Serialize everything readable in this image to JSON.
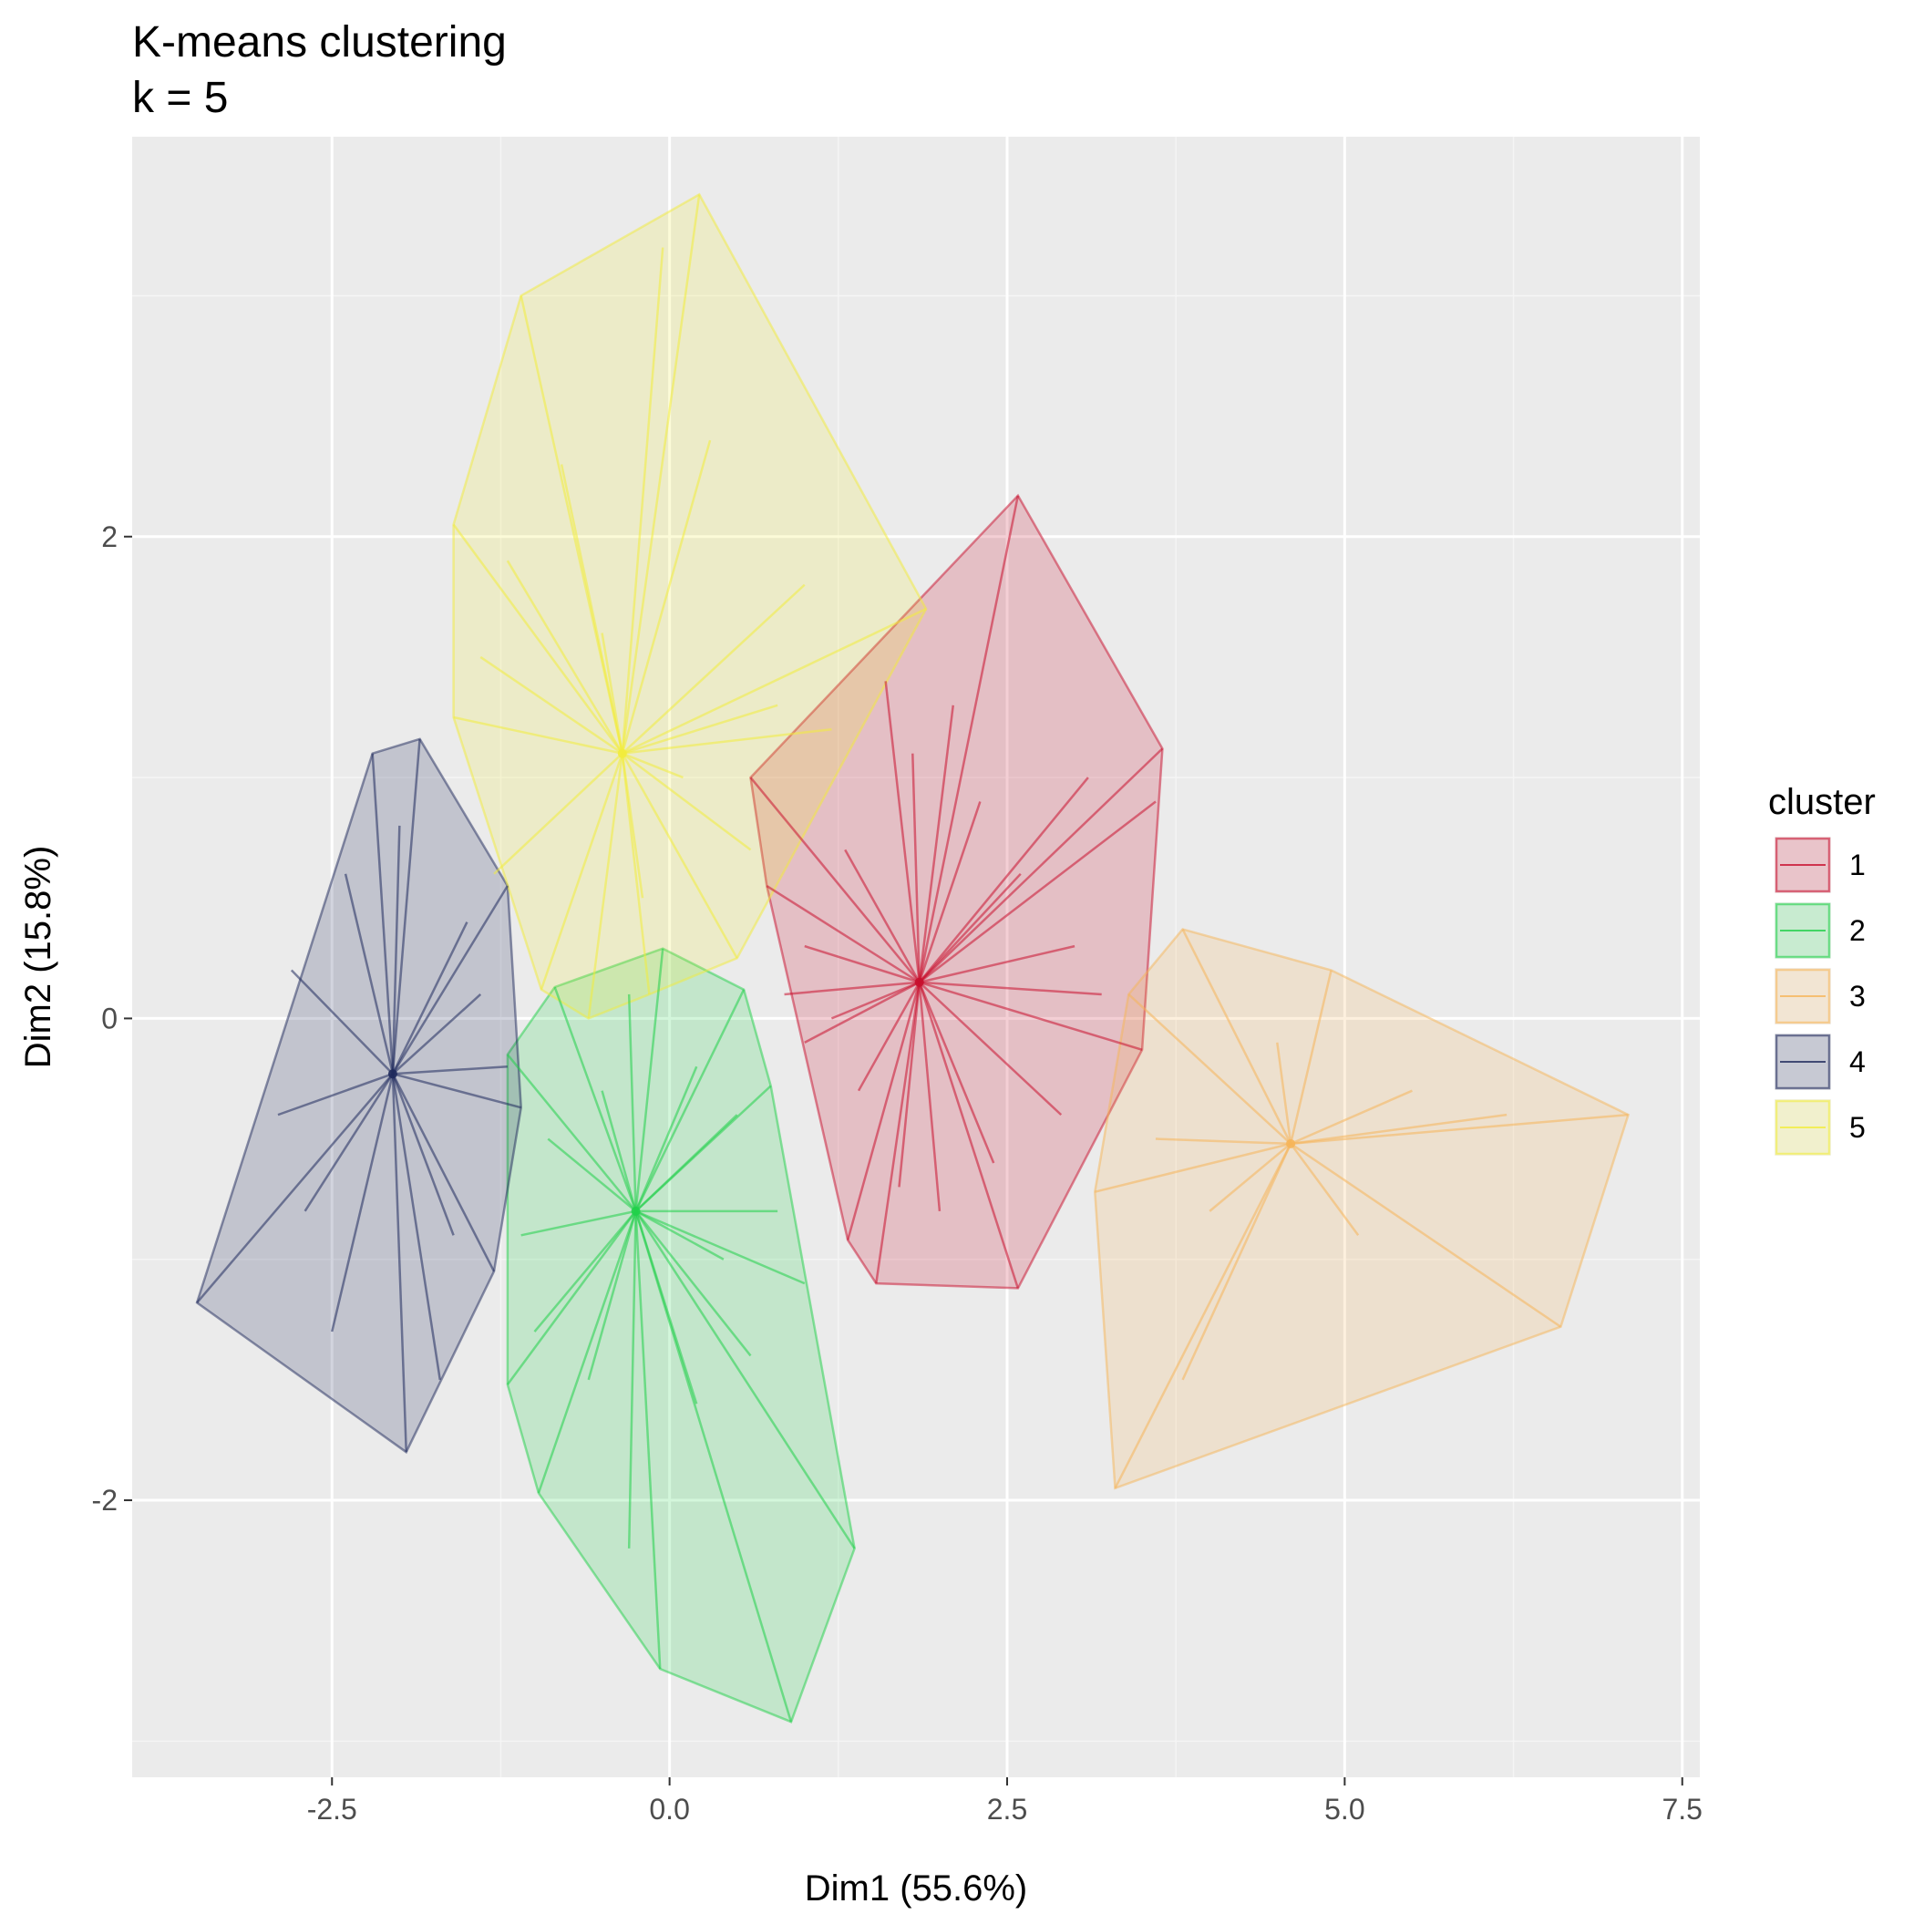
{
  "chart_data": {
    "type": "scatter",
    "title": "K-means clustering",
    "subtitle": "k = 5",
    "xlabel": "Dim1 (55.6%)",
    "ylabel": "Dim2 (15.8%)",
    "xlim": [
      -3.98,
      7.63
    ],
    "ylim": [
      -3.15,
      3.66
    ],
    "x_ticks": [
      -2.5,
      0.0,
      2.5,
      5.0,
      7.5
    ],
    "x_tick_labels": [
      "-2.5",
      "0.0",
      "2.5",
      "5.0",
      "7.5"
    ],
    "y_ticks": [
      -2,
      0,
      2
    ],
    "y_tick_labels": [
      "-2",
      "0",
      "2"
    ],
    "grid": true,
    "legend_title": "cluster",
    "legend_position": "right",
    "series": [
      {
        "name": "1",
        "color": "#C8102E",
        "center": [
          1.85,
          0.15
        ],
        "hull": [
          [
            0.6,
            1.0
          ],
          [
            2.58,
            2.17
          ],
          [
            3.65,
            1.12
          ],
          [
            3.5,
            -0.13
          ],
          [
            2.58,
            -1.12
          ],
          [
            1.53,
            -1.1
          ],
          [
            1.32,
            -0.92
          ],
          [
            0.72,
            0.55
          ]
        ],
        "points": [
          [
            0.6,
            1.0
          ],
          [
            2.58,
            2.17
          ],
          [
            3.65,
            1.12
          ],
          [
            3.5,
            -0.13
          ],
          [
            2.58,
            -1.12
          ],
          [
            1.53,
            -1.1
          ],
          [
            1.32,
            -0.92
          ],
          [
            0.72,
            0.55
          ],
          [
            1.6,
            1.4
          ],
          [
            2.1,
            1.3
          ],
          [
            3.1,
            1.0
          ],
          [
            3.6,
            0.9
          ],
          [
            3.0,
            0.3
          ],
          [
            3.2,
            0.1
          ],
          [
            2.9,
            -0.4
          ],
          [
            2.4,
            -0.6
          ],
          [
            2.0,
            -0.8
          ],
          [
            1.7,
            -0.7
          ],
          [
            1.4,
            -0.3
          ],
          [
            1.0,
            -0.1
          ],
          [
            1.0,
            0.3
          ],
          [
            1.3,
            0.7
          ],
          [
            2.3,
            0.9
          ],
          [
            2.6,
            0.6
          ],
          [
            1.8,
            1.1
          ],
          [
            0.85,
            0.1
          ],
          [
            1.2,
            0.0
          ]
        ]
      },
      {
        "name": "2",
        "color": "#21D04A",
        "center": [
          -0.25,
          -0.8
        ],
        "hull": [
          [
            -0.85,
            0.13
          ],
          [
            -0.05,
            0.29
          ],
          [
            0.55,
            0.12
          ],
          [
            0.75,
            -0.28
          ],
          [
            1.37,
            -2.2
          ],
          [
            0.9,
            -2.92
          ],
          [
            -0.07,
            -2.7
          ],
          [
            -0.97,
            -1.97
          ],
          [
            -1.2,
            -1.52
          ],
          [
            -1.2,
            -0.15
          ]
        ],
        "points": [
          [
            -0.85,
            0.13
          ],
          [
            -0.05,
            0.29
          ],
          [
            0.55,
            0.12
          ],
          [
            0.75,
            -0.28
          ],
          [
            1.37,
            -2.2
          ],
          [
            0.9,
            -2.92
          ],
          [
            -0.07,
            -2.7
          ],
          [
            -0.97,
            -1.97
          ],
          [
            -1.2,
            -1.52
          ],
          [
            -1.2,
            -0.15
          ],
          [
            -0.3,
            0.1
          ],
          [
            0.2,
            -0.2
          ],
          [
            0.5,
            -0.4
          ],
          [
            1.0,
            -1.1
          ],
          [
            0.8,
            -0.8
          ],
          [
            -0.9,
            -0.5
          ],
          [
            -1.1,
            -0.9
          ],
          [
            -1.0,
            -1.3
          ],
          [
            -0.3,
            -2.2
          ],
          [
            0.2,
            -1.6
          ],
          [
            0.6,
            -1.4
          ],
          [
            -0.6,
            -1.5
          ],
          [
            -0.5,
            -0.3
          ],
          [
            0.4,
            -1.0
          ]
        ]
      },
      {
        "name": "3",
        "color": "#F6B55A",
        "center": [
          4.6,
          -0.52
        ],
        "hull": [
          [
            3.8,
            0.37
          ],
          [
            4.9,
            0.2
          ],
          [
            7.1,
            -0.4
          ],
          [
            6.6,
            -1.28
          ],
          [
            3.3,
            -1.95
          ],
          [
            3.15,
            -0.72
          ],
          [
            3.4,
            0.1
          ]
        ],
        "points": [
          [
            3.8,
            0.37
          ],
          [
            4.9,
            0.2
          ],
          [
            7.1,
            -0.4
          ],
          [
            6.6,
            -1.28
          ],
          [
            3.3,
            -1.95
          ],
          [
            3.15,
            -0.72
          ],
          [
            3.4,
            0.1
          ],
          [
            5.5,
            -0.3
          ],
          [
            6.2,
            -0.4
          ],
          [
            5.1,
            -0.9
          ],
          [
            3.8,
            -1.5
          ],
          [
            4.0,
            -0.8
          ],
          [
            4.5,
            -0.1
          ],
          [
            3.6,
            -0.5
          ]
        ]
      },
      {
        "name": "4",
        "color": "#1F2A5C",
        "center": [
          -2.05,
          -0.23
        ],
        "hull": [
          [
            -2.2,
            1.1
          ],
          [
            -1.85,
            1.16
          ],
          [
            -1.2,
            0.55
          ],
          [
            -1.1,
            -0.37
          ],
          [
            -1.3,
            -1.05
          ],
          [
            -1.95,
            -1.8
          ],
          [
            -3.5,
            -1.18
          ]
        ],
        "points": [
          [
            -2.2,
            1.1
          ],
          [
            -1.85,
            1.16
          ],
          [
            -1.2,
            0.55
          ],
          [
            -1.1,
            -0.37
          ],
          [
            -1.3,
            -1.05
          ],
          [
            -1.95,
            -1.8
          ],
          [
            -3.5,
            -1.18
          ],
          [
            -2.8,
            0.2
          ],
          [
            -2.9,
            -0.4
          ],
          [
            -2.5,
            -1.3
          ],
          [
            -1.6,
            -0.9
          ],
          [
            -1.4,
            0.1
          ],
          [
            -1.5,
            0.4
          ],
          [
            -2.4,
            0.6
          ],
          [
            -2.7,
            -0.8
          ],
          [
            -1.2,
            -0.2
          ],
          [
            -2.0,
            0.8
          ],
          [
            -1.7,
            -1.5
          ]
        ]
      },
      {
        "name": "5",
        "color": "#F2EC3C",
        "center": [
          -0.35,
          1.1
        ],
        "hull": [
          [
            -1.1,
            3.0
          ],
          [
            0.22,
            3.42
          ],
          [
            1.9,
            1.7
          ],
          [
            0.5,
            0.25
          ],
          [
            -0.15,
            0.1
          ],
          [
            -0.6,
            0.0
          ],
          [
            -0.95,
            0.12
          ],
          [
            -1.6,
            1.25
          ],
          [
            -1.6,
            2.05
          ]
        ],
        "points": [
          [
            -1.1,
            3.0
          ],
          [
            0.22,
            3.42
          ],
          [
            1.9,
            1.7
          ],
          [
            0.5,
            0.25
          ],
          [
            -0.15,
            0.1
          ],
          [
            -0.6,
            0.0
          ],
          [
            -0.95,
            0.12
          ],
          [
            -1.6,
            1.25
          ],
          [
            -1.6,
            2.05
          ],
          [
            -0.05,
            3.2
          ],
          [
            1.0,
            1.8
          ],
          [
            0.8,
            1.3
          ],
          [
            0.6,
            0.7
          ],
          [
            -0.2,
            0.5
          ],
          [
            -1.3,
            0.6
          ],
          [
            -1.4,
            1.5
          ],
          [
            -0.8,
            2.3
          ],
          [
            0.3,
            2.4
          ],
          [
            1.2,
            1.2
          ],
          [
            -1.2,
            1.9
          ],
          [
            0.1,
            1.0
          ],
          [
            -0.5,
            1.6
          ]
        ]
      }
    ]
  }
}
